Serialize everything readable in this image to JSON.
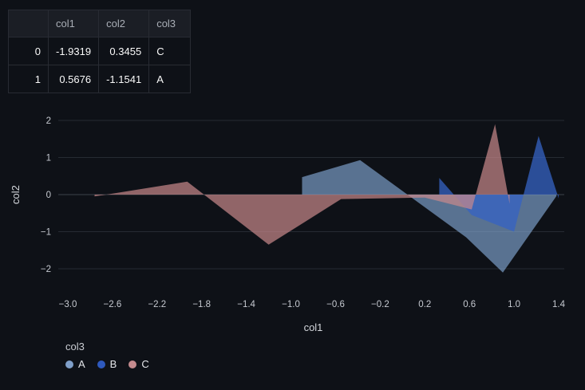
{
  "table": {
    "corner": "",
    "columns": [
      "col1",
      "col2",
      "col3"
    ],
    "rows": [
      {
        "index": "0",
        "col1": "-1.9319",
        "col2": "0.3455",
        "col3": "C"
      },
      {
        "index": "1",
        "col1": "0.5676",
        "col2": "-1.1541",
        "col3": "A"
      }
    ]
  },
  "chart_data": {
    "type": "area",
    "title": "",
    "xlabel": "col1",
    "ylabel": "col2",
    "xlim": [
      -3.0,
      1.4
    ],
    "ylim": [
      -2,
      2
    ],
    "grid": true,
    "legend_position": "bottom-left",
    "x_tick_values": [
      -3.0,
      -2.6,
      -2.2,
      -1.8,
      -1.4,
      -1.0,
      -0.6,
      -0.2,
      0.2,
      0.6,
      1.0,
      1.4
    ],
    "x_tick_labels": [
      "−3.0",
      "−2.6",
      "−2.2",
      "−1.8",
      "−1.4",
      "−1.0",
      "−0.6",
      "−0.2",
      "0.2",
      "0.6",
      "1.0",
      "1.4"
    ],
    "y_tick_values": [
      -2,
      -1,
      0,
      1,
      2
    ],
    "y_tick_labels": [
      "−2",
      "−1",
      "0",
      "1",
      "2"
    ],
    "series": [
      {
        "name": "A",
        "color": "#82a7d2",
        "opacity": 0.65,
        "points": [
          [
            -0.9,
            0.47
          ],
          [
            -0.38,
            0.93
          ],
          [
            0.57,
            -1.15
          ],
          [
            0.9,
            -2.1
          ],
          [
            1.38,
            -0.04
          ]
        ]
      },
      {
        "name": "B",
        "color": "#3563c4",
        "opacity": 0.75,
        "points": [
          [
            0.33,
            0.45
          ],
          [
            0.62,
            -0.55
          ],
          [
            1.0,
            -1.0
          ],
          [
            1.22,
            1.58
          ],
          [
            1.4,
            -0.1
          ]
        ]
      },
      {
        "name": "C",
        "color": "#c9898c",
        "opacity": 0.7,
        "points": [
          [
            -2.76,
            -0.05
          ],
          [
            -1.93,
            0.35
          ],
          [
            -1.2,
            -1.35
          ],
          [
            -0.55,
            -0.12
          ],
          [
            0.2,
            -0.08
          ],
          [
            0.62,
            -0.4
          ],
          [
            0.83,
            1.9
          ],
          [
            0.96,
            -0.25
          ]
        ]
      }
    ],
    "legend": {
      "title": "col3",
      "items": [
        {
          "label": "A",
          "color": "#7f9fc9"
        },
        {
          "label": "B",
          "color": "#2e59bd"
        },
        {
          "label": "C",
          "color": "#c48b8e"
        }
      ]
    },
    "colors": {
      "background": "#0e1117",
      "grid": "#262b33",
      "zero_line": "#3c424b",
      "tick_text": "#c6cad1",
      "title_text": "#d4d7dc"
    }
  }
}
